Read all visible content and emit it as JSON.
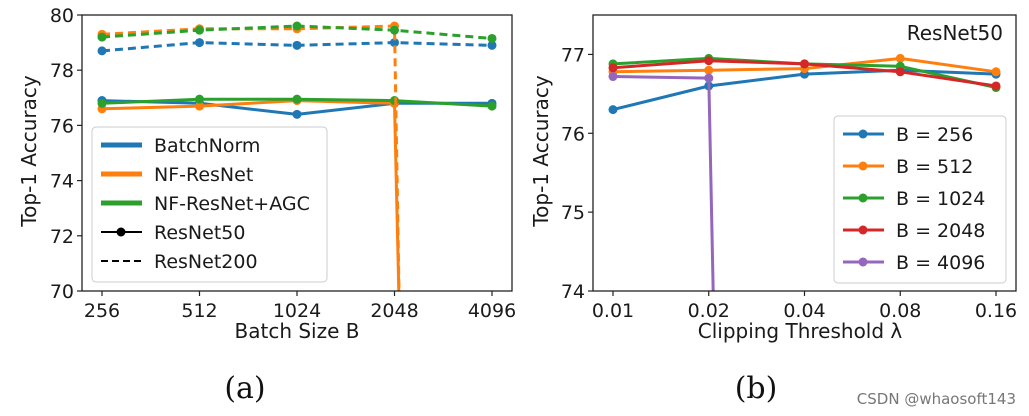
{
  "chart_data": [
    {
      "type": "line",
      "panel": "a",
      "caption": "(a)",
      "xlabel": "Batch Size B",
      "ylabel": "Top-1 Accuracy",
      "categories": [
        "256",
        "512",
        "1024",
        "2048",
        "4096"
      ],
      "ylim": [
        70,
        80
      ],
      "yticks": [
        "70",
        "72",
        "74",
        "76",
        "78",
        "80"
      ],
      "legend_position": "lower-left",
      "legend": [
        {
          "label": "BatchNorm",
          "kind": "color",
          "color": "#1f77b4"
        },
        {
          "label": "NF-ResNet",
          "kind": "color",
          "color": "#ff7f0e"
        },
        {
          "label": "NF-ResNet+AGC",
          "kind": "color",
          "color": "#2ca02c"
        },
        {
          "label": "ResNet50",
          "kind": "solid",
          "color": "#000000"
        },
        {
          "label": "ResNet200",
          "kind": "dashed",
          "color": "#000000"
        }
      ],
      "series": [
        {
          "name": "BatchNorm ResNet50",
          "color": "#1f77b4",
          "style": "solid",
          "values": [
            76.9,
            76.8,
            76.4,
            76.8,
            76.8
          ]
        },
        {
          "name": "NF-ResNet ResNet50",
          "color": "#ff7f0e",
          "style": "solid",
          "values": [
            76.6,
            76.7,
            76.9,
            76.8,
            null
          ],
          "drop_to": 70
        },
        {
          "name": "NF-ResNet+AGC ResNet50",
          "color": "#2ca02c",
          "style": "solid",
          "values": [
            76.8,
            76.95,
            76.95,
            76.9,
            76.7
          ]
        },
        {
          "name": "BatchNorm ResNet200",
          "color": "#1f77b4",
          "style": "dashed",
          "values": [
            78.7,
            79.0,
            78.9,
            79.0,
            78.9
          ]
        },
        {
          "name": "NF-ResNet ResNet200",
          "color": "#ff7f0e",
          "style": "dashed",
          "values": [
            79.3,
            79.5,
            79.5,
            79.6,
            null
          ],
          "drop_to": 70
        },
        {
          "name": "NF-ResNet+AGC ResNet200",
          "color": "#2ca02c",
          "style": "dashed",
          "values": [
            79.2,
            79.45,
            79.6,
            79.45,
            79.15
          ]
        }
      ]
    },
    {
      "type": "line",
      "panel": "b",
      "caption": "(b)",
      "title": "ResNet50",
      "xlabel": "Clipping Threshold λ",
      "ylabel": "Top-1 Accuracy",
      "categories": [
        "0.01",
        "0.02",
        "0.04",
        "0.08",
        "0.16"
      ],
      "ylim": [
        74,
        77.5
      ],
      "yticks": [
        "74",
        "75",
        "76",
        "77"
      ],
      "legend_position": "lower-right",
      "series": [
        {
          "name": "B = 256",
          "color": "#1f77b4",
          "style": "solid",
          "values": [
            76.3,
            76.6,
            76.75,
            76.8,
            76.75
          ]
        },
        {
          "name": "B = 512",
          "color": "#ff7f0e",
          "style": "solid",
          "values": [
            76.78,
            76.8,
            76.82,
            76.95,
            76.78
          ]
        },
        {
          "name": "B = 1024",
          "color": "#2ca02c",
          "style": "solid",
          "values": [
            76.88,
            76.95,
            76.88,
            76.85,
            76.58
          ]
        },
        {
          "name": "B = 2048",
          "color": "#d62728",
          "style": "solid",
          "values": [
            76.83,
            76.92,
            76.88,
            76.78,
            76.6
          ]
        },
        {
          "name": "B = 4096",
          "color": "#9467bd",
          "style": "solid",
          "values": [
            76.72,
            76.7,
            null,
            null,
            null
          ],
          "drop_to": 74
        }
      ]
    }
  ],
  "watermark": "CSDN @whaosoft143"
}
